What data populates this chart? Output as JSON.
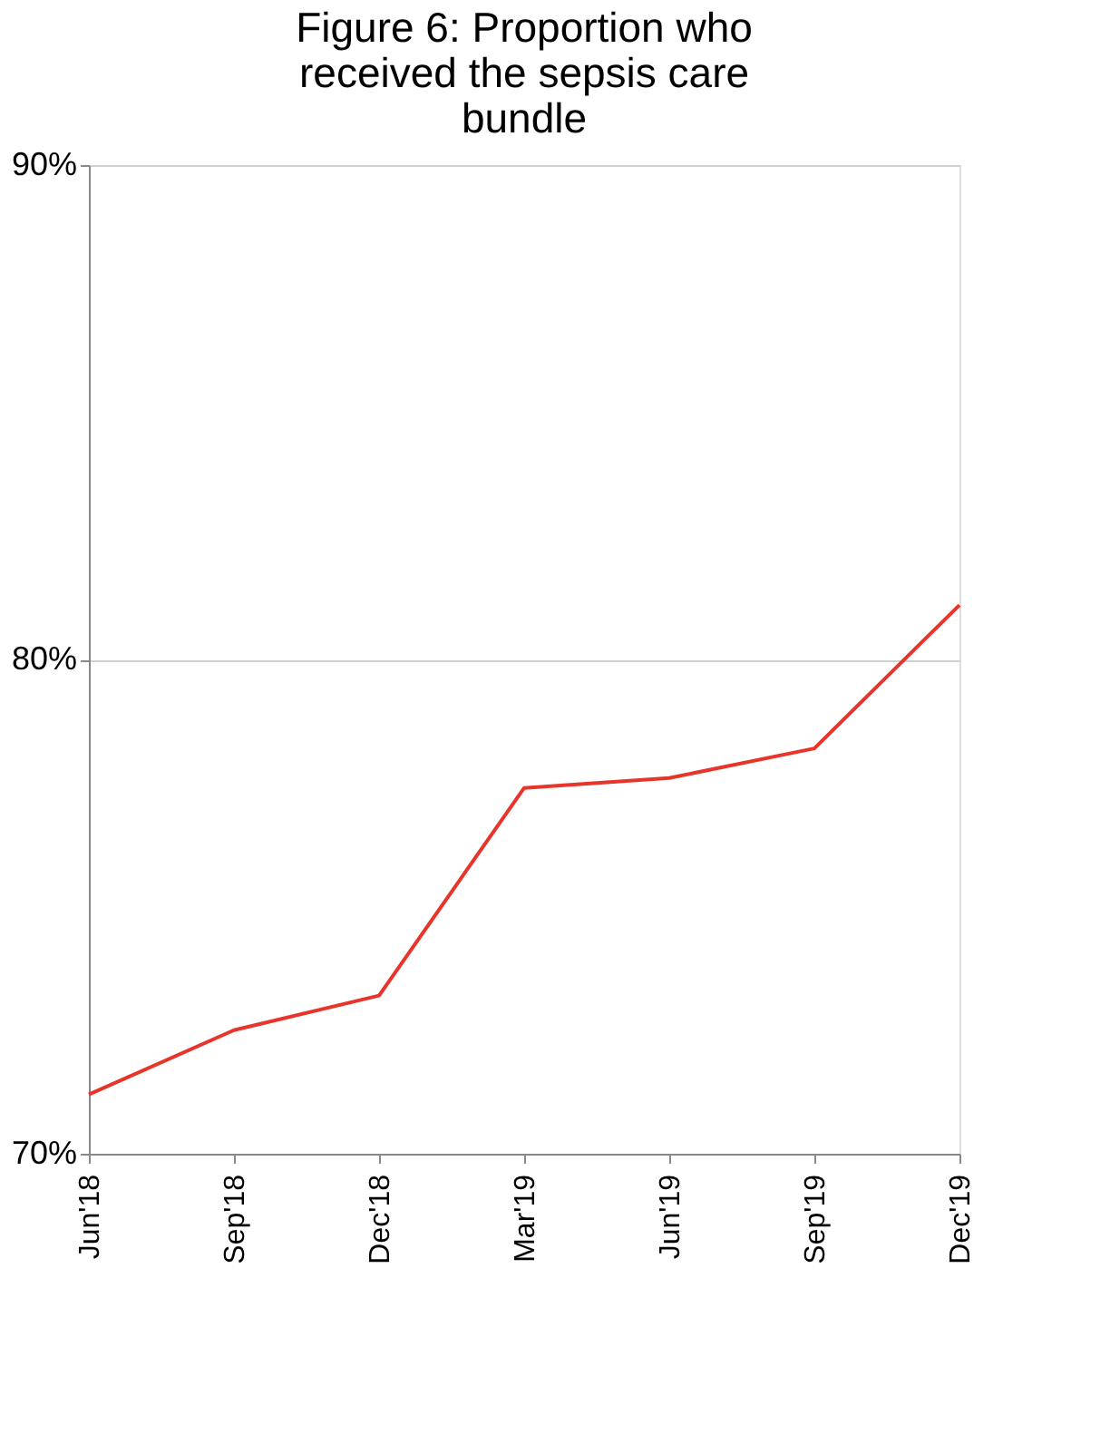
{
  "chart_data": {
    "type": "line",
    "title": "Figure 6: Proportion who received the sepsis care bundle",
    "categories": [
      "Jun'18",
      "Sep'18",
      "Dec'18",
      "Mar'19",
      "Jun'19",
      "Sep'19",
      "Dec'19"
    ],
    "series": [
      {
        "color": "#e8352b",
        "values": [
          71.2,
          72.5,
          73.2,
          77.4,
          77.6,
          78.2,
          81.1
        ]
      }
    ],
    "ylim": [
      70,
      90
    ],
    "yticks": [
      {
        "value": 70,
        "label": "70%"
      },
      {
        "value": 80,
        "label": "80%"
      },
      {
        "value": 90,
        "label": "90%"
      }
    ],
    "grid": "y",
    "legend": false,
    "marker": "none",
    "line_style": "solid"
  }
}
